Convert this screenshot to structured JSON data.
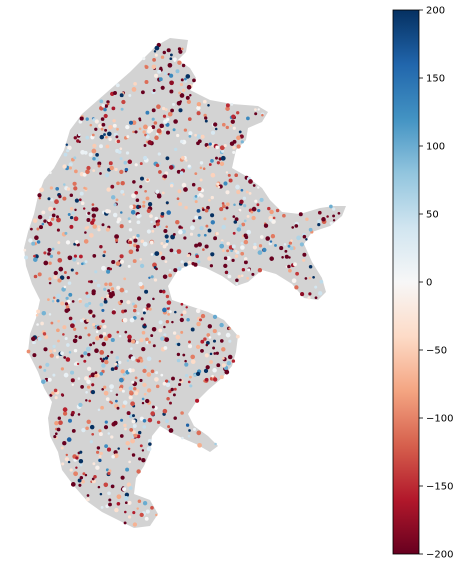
{
  "colorbar": {
    "min": -200,
    "max": 200,
    "colormap": "RdBu",
    "ticks": [
      "200",
      "150",
      "100",
      "50",
      "0",
      "−50",
      "−100",
      "−150",
      "−200"
    ],
    "tick_values": [
      200,
      150,
      100,
      50,
      0,
      -50,
      -100,
      -150,
      -200
    ],
    "colors": [
      "#67001f",
      "#b2182b",
      "#d6604d",
      "#f4a582",
      "#fddbc7",
      "#f7f7f7",
      "#d1e5f0",
      "#92c5de",
      "#4393c3",
      "#2166ac",
      "#053061"
    ]
  },
  "map": {
    "background_color": "#d3d3d3",
    "marker": "dot"
  }
}
